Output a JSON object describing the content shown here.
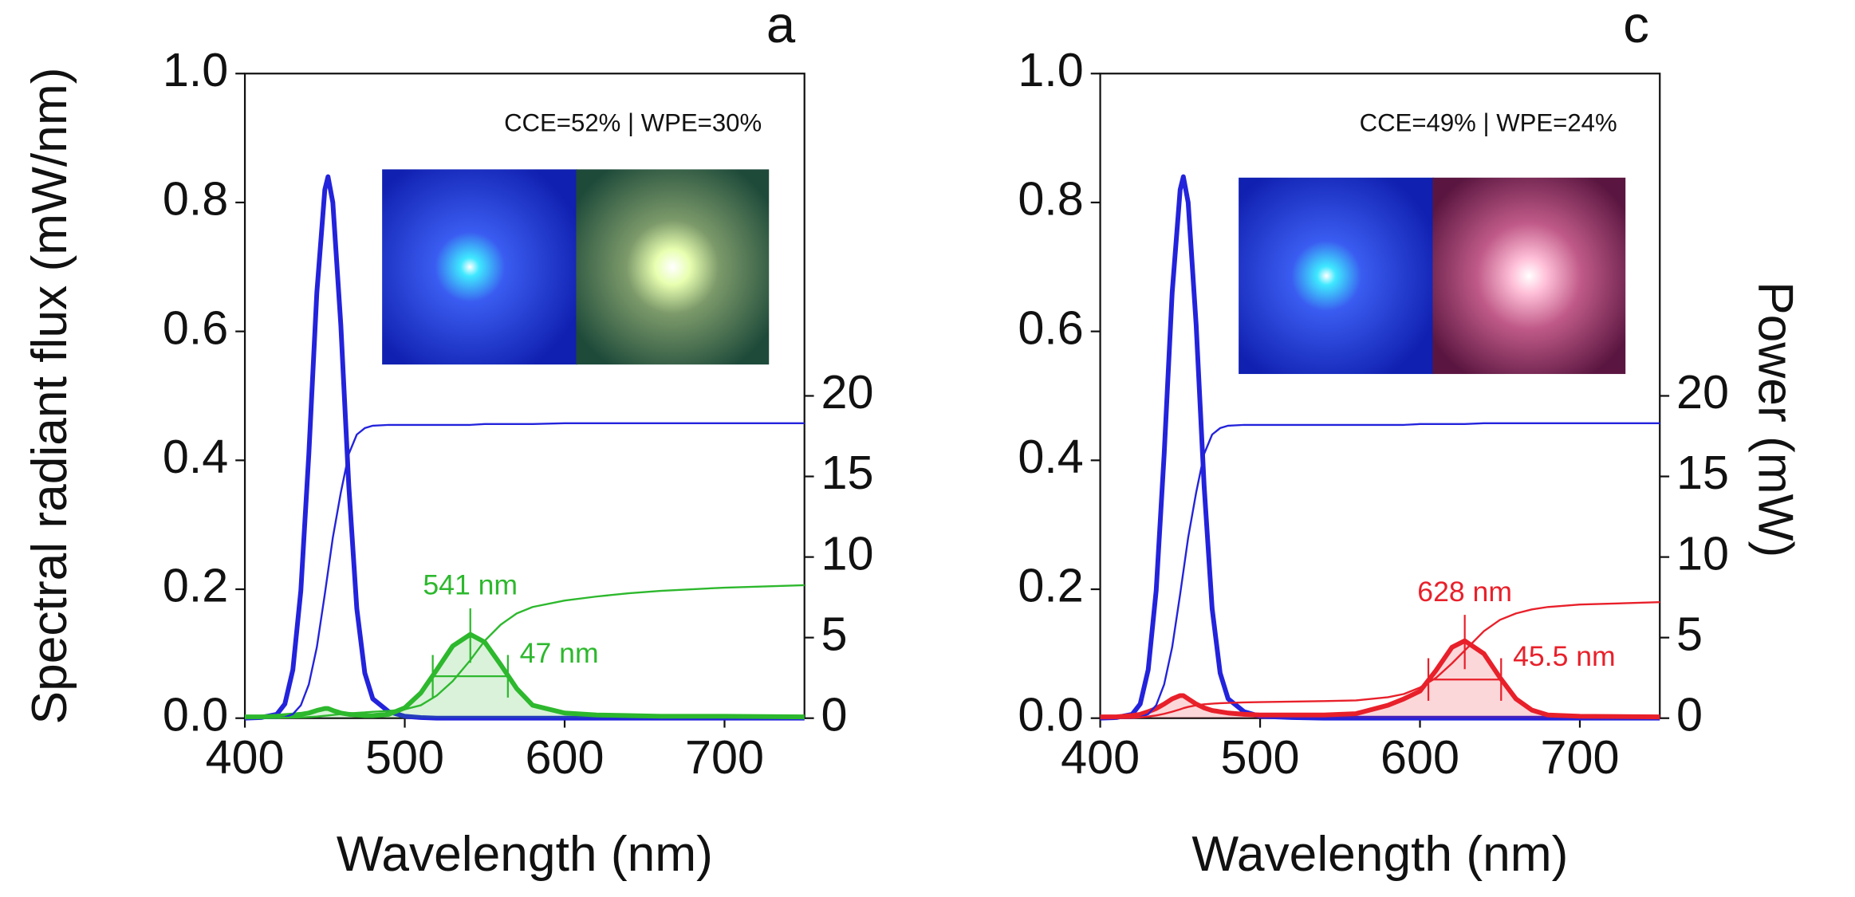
{
  "chart_data": [
    {
      "type": "line",
      "panel": "a",
      "note": "CCE=52% | WPE=30%",
      "xlabel": "Wavelength (nm)",
      "ylabel": "Spectral radiant flux (mW/nm)",
      "x": [
        400,
        410,
        420,
        425,
        430,
        435,
        440,
        445,
        450,
        452,
        455,
        460,
        465,
        470,
        475,
        480,
        490,
        500,
        510,
        520,
        530,
        541,
        550,
        560,
        570,
        580,
        600,
        620,
        640,
        660,
        700,
        750
      ],
      "xlim": [
        400,
        750
      ],
      "xticks": [
        400,
        500,
        600,
        700
      ],
      "ylim": [
        0,
        1
      ],
      "yticks": [
        {
          "value": 0,
          "label": "0.0"
        },
        0.2,
        0.4,
        0.6,
        0.8,
        {
          "value": 1,
          "label": "1.0"
        }
      ],
      "y2lim": [
        0,
        40
      ],
      "y2ticks": [
        0,
        5,
        10,
        15,
        20
      ],
      "series": [
        {
          "color": "#2323dc",
          "values": [
            0.0,
            0.001,
            0.006,
            0.022,
            0.075,
            0.198,
            0.41,
            0.66,
            0.82,
            0.84,
            0.8,
            0.61,
            0.36,
            0.17,
            0.07,
            0.03,
            0.01,
            0.003,
            0.001,
            0,
            0,
            0,
            0,
            0,
            0,
            0,
            0,
            0,
            0,
            0,
            0,
            0
          ]
        },
        {
          "color": "#2db82d",
          "fill": true,
          "values": [
            0.002,
            0.002,
            0.003,
            0.004,
            0.005,
            0.006,
            0.008,
            0.012,
            0.015,
            0.015,
            0.012,
            0.008,
            0.006,
            0.005,
            0.004,
            0.004,
            0.006,
            0.016,
            0.039,
            0.075,
            0.112,
            0.13,
            0.118,
            0.083,
            0.046,
            0.02,
            0.008,
            0.005,
            0.004,
            0.003,
            0.003,
            0.002
          ]
        },
        {
          "color": "#2323dc",
          "axis": "y2",
          "values": [
            0,
            0,
            0.01,
            0.06,
            0.25,
            0.8,
            2.1,
            4.4,
            7.7,
            9.1,
            11.2,
            14.0,
            16.4,
            17.6,
            18.0,
            18.15,
            18.2,
            18.2,
            18.2,
            18.2,
            18.2,
            18.2,
            18.25,
            18.25,
            18.25,
            18.25,
            18.3,
            18.3,
            18.3,
            18.3,
            18.3,
            18.3
          ]
        },
        {
          "color": "#2db82d",
          "axis": "y2",
          "values": [
            0,
            0,
            0.02,
            0.03,
            0.04,
            0.05,
            0.07,
            0.1,
            0.15,
            0.17,
            0.2,
            0.25,
            0.3,
            0.33,
            0.36,
            0.4,
            0.45,
            0.55,
            0.8,
            1.4,
            2.3,
            3.6,
            4.8,
            5.8,
            6.5,
            6.9,
            7.3,
            7.55,
            7.75,
            7.9,
            8.1,
            8.25
          ]
        }
      ],
      "peak": {
        "x": 541,
        "label": "541 nm"
      },
      "fwhm": {
        "value": 47,
        "label": "47 nm"
      }
    },
    {
      "type": "line",
      "panel": "c",
      "note": "CCE=49% | WPE=24%",
      "xlabel": "Wavelength (nm)",
      "y2label": "Power (mW)",
      "x": [
        400,
        410,
        420,
        425,
        430,
        435,
        440,
        445,
        450,
        452,
        455,
        460,
        465,
        470,
        475,
        480,
        490,
        500,
        520,
        540,
        560,
        580,
        590,
        600,
        610,
        620,
        628,
        640,
        650,
        660,
        670,
        680,
        700,
        750
      ],
      "xlim": [
        400,
        750
      ],
      "xticks": [
        400,
        500,
        600,
        700
      ],
      "ylim": [
        0,
        1
      ],
      "yticks": [
        {
          "value": 0,
          "label": "0.0"
        },
        0.2,
        0.4,
        0.6,
        0.8,
        {
          "value": 1,
          "label": "1.0"
        }
      ],
      "y2lim": [
        0,
        40
      ],
      "y2ticks": [
        0,
        5,
        10,
        15,
        20
      ],
      "series": [
        {
          "color": "#2323dc",
          "values": [
            0.0,
            0.001,
            0.006,
            0.022,
            0.075,
            0.198,
            0.41,
            0.66,
            0.82,
            0.84,
            0.8,
            0.61,
            0.36,
            0.17,
            0.07,
            0.03,
            0.01,
            0.003,
            0.001,
            0,
            0,
            0,
            0,
            0,
            0,
            0,
            0,
            0,
            0,
            0,
            0,
            0,
            0,
            0
          ]
        },
        {
          "color": "#e8202a",
          "fill": true,
          "values": [
            0.002,
            0.002,
            0.004,
            0.006,
            0.01,
            0.015,
            0.022,
            0.03,
            0.035,
            0.035,
            0.03,
            0.022,
            0.016,
            0.012,
            0.01,
            0.008,
            0.006,
            0.005,
            0.005,
            0.005,
            0.007,
            0.02,
            0.03,
            0.042,
            0.074,
            0.11,
            0.12,
            0.1,
            0.063,
            0.03,
            0.0125,
            0.005,
            0.003,
            0.002
          ]
        },
        {
          "color": "#2323dc",
          "axis": "y2",
          "values": [
            0,
            0,
            0.01,
            0.06,
            0.25,
            0.8,
            2.1,
            4.4,
            7.7,
            9.1,
            11.2,
            14.0,
            16.4,
            17.6,
            18.0,
            18.15,
            18.2,
            18.2,
            18.2,
            18.2,
            18.2,
            18.2,
            18.2,
            18.25,
            18.25,
            18.25,
            18.25,
            18.3,
            18.3,
            18.3,
            18.3,
            18.3,
            18.3,
            18.3
          ]
        },
        {
          "color": "#e8202a",
          "axis": "y2",
          "values": [
            0,
            0,
            0.02,
            0.05,
            0.1,
            0.17,
            0.27,
            0.4,
            0.55,
            0.62,
            0.7,
            0.8,
            0.86,
            0.9,
            0.93,
            0.95,
            0.98,
            1.0,
            1.03,
            1.06,
            1.1,
            1.3,
            1.5,
            1.9,
            2.5,
            3.4,
            4.2,
            5.4,
            6.1,
            6.5,
            6.75,
            6.9,
            7.05,
            7.2
          ]
        }
      ],
      "peak": {
        "x": 628,
        "label": "628 nm"
      },
      "fwhm": {
        "value": 45.5,
        "label": "45.5 nm"
      }
    }
  ]
}
